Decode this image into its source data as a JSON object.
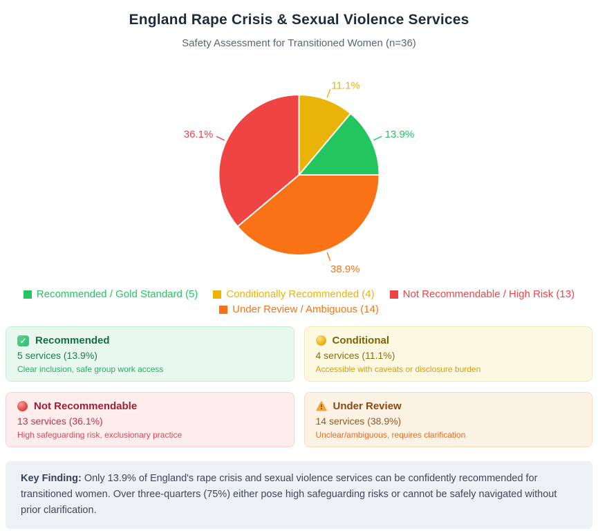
{
  "page": {
    "title": "England Rape Crisis & Sexual Violence Services",
    "subtitle": "Safety Assessment for Transitioned Women (n=36)"
  },
  "chart_data": {
    "type": "pie",
    "title": "England Rape Crisis & Sexual Violence Services",
    "subtitle": "Safety Assessment for Transitioned Women (n=36)",
    "total_n": 36,
    "start": "12 o'clock, clockwise",
    "legend_position": "bottom",
    "grid": false,
    "slices": [
      {
        "label": "Conditionally Recommended",
        "count": 4,
        "pct": 11.1,
        "pct_label": "11.1%",
        "color": "#eab308"
      },
      {
        "label": "Recommended / Gold Standard",
        "count": 5,
        "pct": 13.9,
        "pct_label": "13.9%",
        "color": "#22c55e"
      },
      {
        "label": "Under Review / Ambiguous",
        "count": 14,
        "pct": 38.9,
        "pct_label": "38.9%",
        "color": "#f97316"
      },
      {
        "label": "Not Recommendable / High Risk",
        "count": 13,
        "pct": 36.1,
        "pct_label": "36.1%",
        "color": "#ef4444"
      }
    ]
  },
  "legend": {
    "items": [
      {
        "label": "Recommended / Gold Standard (5)",
        "color": "#22c55e"
      },
      {
        "label": "Conditionally Recommended (4)",
        "color": "#eab308"
      },
      {
        "label": "Not Recommendable / High Risk (13)",
        "color": "#ef4444"
      },
      {
        "label": "Under Review / Ambiguous (14)",
        "color": "#f97316"
      }
    ]
  },
  "cards": [
    {
      "icon": "check-icon",
      "title": "Recommended",
      "value": "5 services (13.9%)",
      "desc": "Clear inclusion, safe group work access"
    },
    {
      "icon": "yellow-circle-icon",
      "title": "Conditional",
      "value": "4 services (11.1%)",
      "desc": "Accessible with caveats or disclosure burden"
    },
    {
      "icon": "red-circle-icon",
      "title": "Not Recommendable",
      "value": "13 services (36.1%)",
      "desc": "High safeguarding risk, exclusionary practice"
    },
    {
      "icon": "warning-icon",
      "title": "Under Review",
      "value": "14 services (38.9%)",
      "desc": "Unclear/ambiguous, requires clarification"
    }
  ],
  "key_finding": {
    "label": "Key Finding:",
    "text": " Only 13.9% of England's rape crisis and sexual violence services can be confidently recommended for transitioned women. Over three-quarters (75%) either pose high safeguarding risks or cannot be safely navigated without prior clarification.",
    "check_glyph": "✓"
  }
}
